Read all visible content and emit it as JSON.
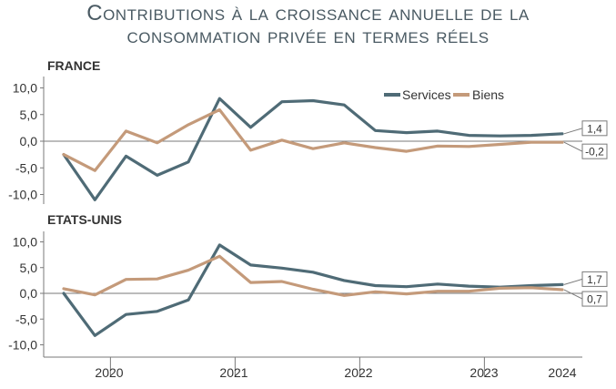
{
  "title": {
    "line1": "Contributions à la croissance annuelle de la",
    "line2": "consommation privée en termes réels"
  },
  "colors": {
    "services": "#4f6b76",
    "biens": "#c49a7a",
    "axis": "#7a7a7a",
    "text": "#333333"
  },
  "chart_data": [
    {
      "type": "line",
      "panel_label": "FRANCE",
      "ylim": [
        -12.5,
        12.5
      ],
      "yticks": [
        "10,0",
        "5,0",
        "0,0",
        "-5,0",
        "-10,0"
      ],
      "ytick_values": [
        10,
        5,
        0,
        -5,
        -10
      ],
      "legend": {
        "position": "top-right",
        "entries": [
          "Services",
          "Biens"
        ]
      },
      "series": [
        {
          "name": "Services",
          "values": [
            -2.5,
            -11.0,
            -2.8,
            -6.4,
            -3.9,
            8.0,
            2.6,
            7.4,
            7.6,
            6.8,
            2.0,
            1.6,
            1.9,
            1.1,
            1.0,
            1.1,
            1.4
          ]
        },
        {
          "name": "Biens",
          "values": [
            -2.5,
            -5.5,
            1.9,
            -0.3,
            3.1,
            5.9,
            -1.7,
            0.2,
            -1.4,
            -0.3,
            -1.2,
            -1.9,
            -0.9,
            -1.0,
            -0.6,
            -0.2,
            -0.2
          ]
        }
      ],
      "end_labels": [
        "1,4",
        "-0,2"
      ]
    },
    {
      "type": "line",
      "panel_label": "ETATS-UNIS",
      "ylim": [
        -12.5,
        12.5
      ],
      "yticks": [
        "10,0",
        "5,0",
        "0,0",
        "-5,0",
        "-10,0"
      ],
      "ytick_values": [
        10,
        5,
        0,
        -5,
        -10
      ],
      "series": [
        {
          "name": "Services",
          "values": [
            0.0,
            -8.2,
            -4.1,
            -3.5,
            -1.3,
            9.4,
            5.5,
            4.9,
            4.1,
            2.5,
            1.5,
            1.3,
            1.8,
            1.4,
            1.2,
            1.5,
            1.7
          ]
        },
        {
          "name": "Biens",
          "values": [
            0.9,
            -0.3,
            2.7,
            2.8,
            4.5,
            7.2,
            2.1,
            2.3,
            0.8,
            -0.4,
            0.3,
            -0.1,
            0.4,
            0.4,
            1.0,
            1.1,
            0.7
          ]
        }
      ],
      "end_labels": [
        "1,7",
        "0,7"
      ]
    }
  ],
  "x_axis": {
    "year_labels": [
      "2020",
      "2021",
      "2022",
      "2023",
      "2024"
    ]
  }
}
